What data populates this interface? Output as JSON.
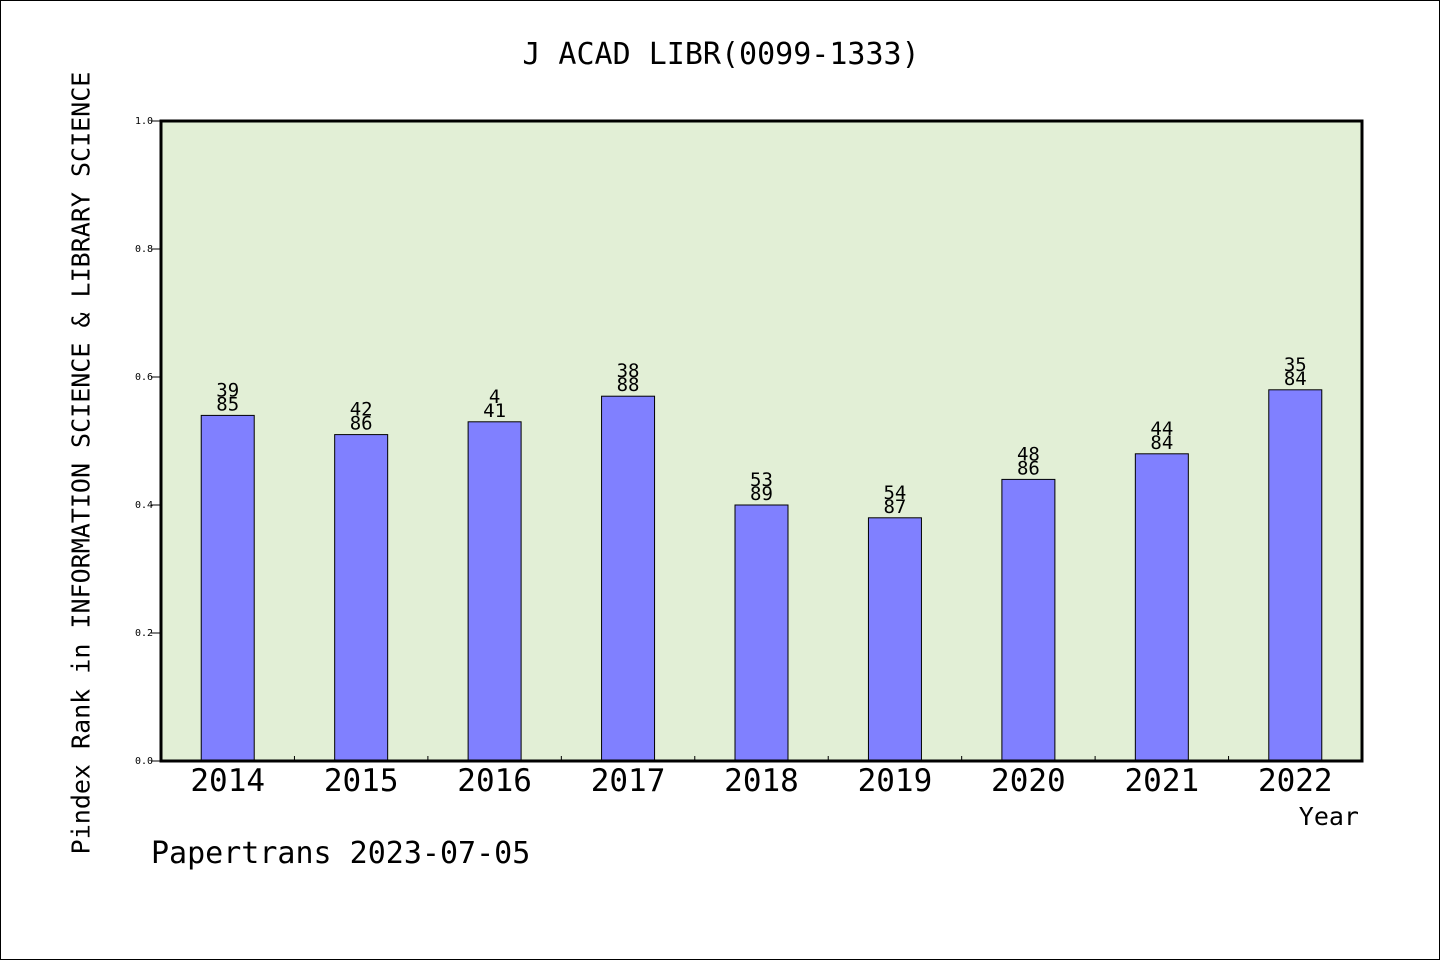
{
  "chart_data": {
    "type": "bar",
    "title": "J ACAD LIBR(0099-1333)",
    "xlabel": "Year",
    "ylabel": "Pindex Rank in INFORMATION SCIENCE & LIBRARY SCIENCE",
    "categories": [
      "2014",
      "2015",
      "2016",
      "2017",
      "2018",
      "2019",
      "2020",
      "2021",
      "2022"
    ],
    "values": [
      0.54,
      0.51,
      0.53,
      0.57,
      0.4,
      0.38,
      0.44,
      0.48,
      0.58
    ],
    "labels_top": [
      "39",
      "42",
      "4",
      "38",
      "53",
      "54",
      "48",
      "44",
      "35"
    ],
    "labels_bottom": [
      "85",
      "86",
      "41",
      "88",
      "89",
      "87",
      "86",
      "84",
      "84"
    ],
    "ylim": [
      0,
      1.0
    ],
    "yticks": [
      "0.0",
      "0.2",
      "0.4",
      "0.6",
      "0.8",
      "1.0"
    ],
    "grid": false,
    "plot_background": "#e2efd6",
    "bar_color": "#8080ff"
  },
  "footer": "Papertrans 2023-07-05"
}
